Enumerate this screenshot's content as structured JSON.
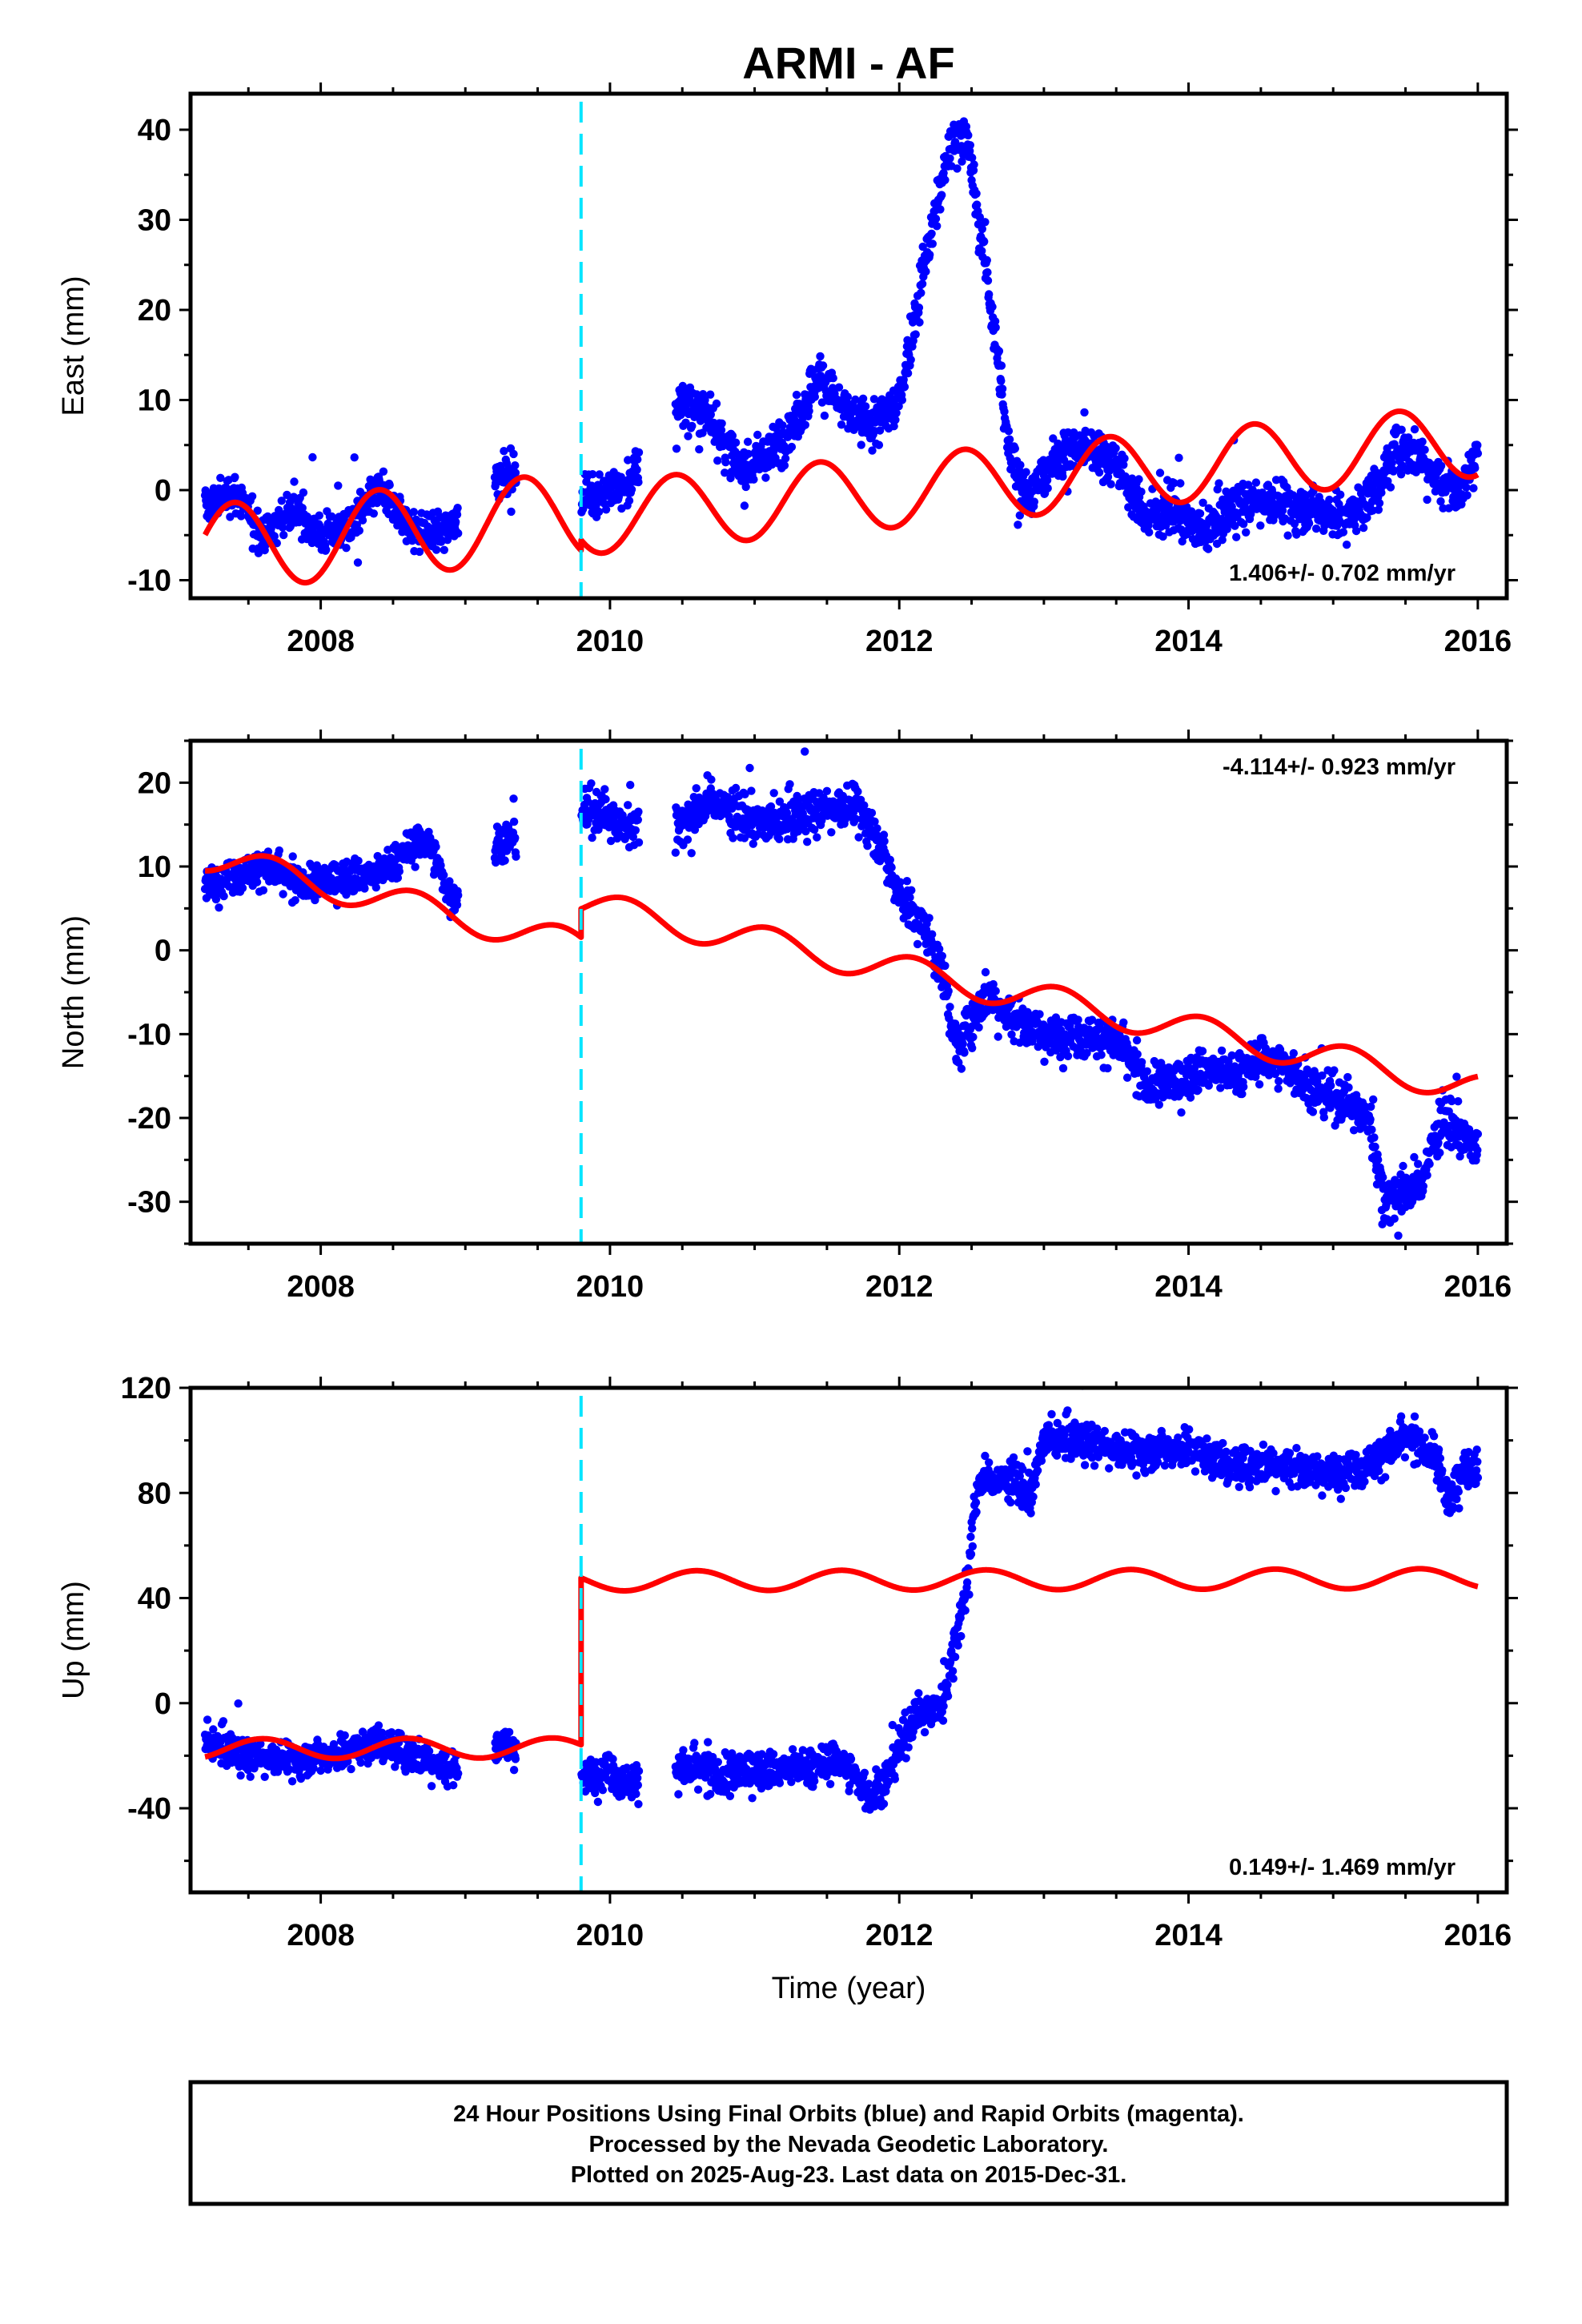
{
  "title": "ARMI - AF",
  "x_axis_label": "Time (year)",
  "colors": {
    "observations": "#0000ff",
    "model": "#ff0000",
    "event_line": "#00e5ff",
    "frame": "#000000"
  },
  "footer": {
    "lines": [
      "24 Hour Positions Using Final Orbits (blue) and Rapid Orbits (magenta).",
      "Processed by the Nevada Geodetic Laboratory.",
      "Plotted on 2025-Aug-23. Last data on 2015-Dec-31."
    ]
  },
  "chart_data": [
    {
      "type": "scatter",
      "name": "east",
      "ylabel": "East (mm)",
      "xlabel": "",
      "xlim": [
        2007.1,
        2016.2
      ],
      "ylim": [
        -12,
        44
      ],
      "xticks": [
        2008,
        2010,
        2012,
        2014,
        2016
      ],
      "yticks": [
        -10,
        0,
        10,
        20,
        30,
        40
      ],
      "rate_label": "1.406+/- 0.702 mm/yr",
      "rate_position": "bottom-right",
      "event_line_x": 2009.8,
      "observations_trend": {
        "x": [
          2007.2,
          2007.4,
          2007.6,
          2007.8,
          2008.0,
          2008.2,
          2008.4,
          2008.6,
          2008.75,
          2008.9,
          2009.25,
          2009.8,
          2009.9,
          2010.1,
          2010.5,
          2010.7,
          2010.9,
          2011.1,
          2011.3,
          2011.45,
          2011.6,
          2011.8,
          2012.0,
          2012.2,
          2012.35,
          2012.45,
          2012.6,
          2012.75,
          2012.9,
          2013.1,
          2013.3,
          2013.5,
          2013.7,
          2013.9,
          2014.1,
          2014.3,
          2014.5,
          2014.7,
          2014.9,
          2015.1,
          2015.3,
          2015.45,
          2015.6,
          2015.75,
          2015.9,
          2016.0
        ],
        "y": [
          -2,
          0,
          -5,
          -2,
          -5,
          -4,
          0,
          -4,
          -5,
          -4,
          2,
          -1,
          0,
          0,
          10,
          8,
          2,
          4,
          8,
          13,
          9,
          7,
          10,
          27,
          38,
          40,
          25,
          5,
          -1,
          4,
          5,
          3,
          -3,
          -2,
          -5,
          -2,
          -1,
          -2,
          -2,
          -3,
          0,
          5,
          4,
          1,
          0,
          5
        ],
        "spread": [
          1.5,
          1.5,
          1.5,
          1.5,
          1.5,
          1.5,
          1.5,
          1.5,
          1.5,
          1.5,
          1.5,
          1.8,
          1.8,
          1.8,
          1.8,
          1.8,
          1.8,
          1.8,
          1.8,
          1.8,
          1.8,
          1.8,
          1.8,
          2.0,
          2.0,
          2.0,
          2.0,
          2.0,
          1.8,
          1.8,
          1.8,
          1.8,
          1.8,
          1.8,
          1.8,
          1.8,
          1.8,
          1.8,
          1.8,
          1.8,
          1.8,
          1.8,
          1.8,
          1.8,
          1.8,
          1.8
        ],
        "data_gaps": [
          [
            2008.95,
            2009.2
          ],
          [
            2009.35,
            2009.8
          ],
          [
            2010.2,
            2010.45
          ]
        ],
        "approx_points_per_year": 300
      },
      "model": {
        "x_start": 2007.2,
        "x_end": 2016.0,
        "offset_at": 2009.8,
        "segments": [
          {
            "from": 2007.2,
            "to": 2009.8,
            "intercept_at_2009_8": -2.8,
            "rate": 1.406,
            "annual_amplitude": 4.8,
            "annual_peak": 2009.4
          },
          {
            "from": 2009.8,
            "to": 2016.0,
            "intercept_at_2009_8": -3.2,
            "rate": 1.406,
            "annual_amplitude": 4.0,
            "annual_peak": 2010.45
          }
        ]
      }
    },
    {
      "type": "scatter",
      "name": "north",
      "ylabel": "North (mm)",
      "xlabel": "",
      "xlim": [
        2007.1,
        2016.2
      ],
      "ylim": [
        -35,
        25
      ],
      "xticks": [
        2008,
        2010,
        2012,
        2014,
        2016
      ],
      "yticks": [
        -30,
        -20,
        -10,
        0,
        10,
        20
      ],
      "rate_label": "-4.114+/- 0.923 mm/yr",
      "rate_position": "top-right",
      "event_line_x": 2009.8,
      "observations_trend": {
        "x": [
          2007.2,
          2007.4,
          2007.6,
          2007.8,
          2008.0,
          2008.2,
          2008.4,
          2008.6,
          2008.75,
          2008.9,
          2009.25,
          2009.8,
          2009.9,
          2010.1,
          2010.5,
          2010.7,
          2010.9,
          2011.1,
          2011.3,
          2011.5,
          2011.7,
          2011.8,
          2012.0,
          2012.2,
          2012.3,
          2012.4,
          2012.6,
          2012.8,
          2013.0,
          2013.3,
          2013.5,
          2013.7,
          2013.9,
          2014.1,
          2014.3,
          2014.5,
          2014.7,
          2014.9,
          2015.1,
          2015.25,
          2015.35,
          2015.6,
          2015.75,
          2015.9,
          2016.0
        ],
        "y": [
          8,
          9,
          10,
          8,
          8,
          9,
          9,
          12,
          13,
          6,
          13,
          16,
          17,
          15,
          15,
          18,
          16,
          15,
          16,
          17,
          17,
          15,
          7,
          2,
          -3,
          -12,
          -5,
          -8,
          -10,
          -10,
          -11,
          -16,
          -16,
          -14,
          -15,
          -13,
          -14,
          -17,
          -18,
          -20,
          -30,
          -28,
          -20,
          -22,
          -24
        ],
        "spread": [
          1.5,
          1.5,
          1.5,
          1.5,
          1.5,
          1.5,
          1.5,
          1.5,
          1.5,
          1.5,
          1.5,
          1.8,
          1.8,
          1.8,
          1.8,
          1.8,
          1.8,
          1.8,
          1.8,
          1.8,
          1.8,
          1.8,
          1.8,
          1.8,
          1.8,
          2.0,
          1.8,
          1.8,
          1.8,
          1.8,
          1.8,
          1.8,
          1.8,
          1.8,
          1.8,
          1.8,
          1.8,
          1.8,
          1.8,
          1.8,
          2.0,
          2.0,
          2.0,
          1.8,
          1.8
        ],
        "data_gaps": [
          [
            2008.95,
            2009.2
          ],
          [
            2009.35,
            2009.8
          ],
          [
            2010.2,
            2010.45
          ]
        ],
        "approx_points_per_year": 300
      },
      "model": {
        "x_start": 2007.2,
        "x_end": 2016.0,
        "offset_at": 2009.8,
        "segments": [
          {
            "from": 2007.2,
            "to": 2009.8,
            "intercept_at_2009_8": 0.5,
            "rate": -4.114,
            "annual_amplitude": 1.8,
            "annual_peak": 2009.65
          },
          {
            "from": 2009.8,
            "to": 2016.0,
            "intercept_at_2009_8": 5.5,
            "rate": -3.55,
            "annual_amplitude": 1.8,
            "annual_peak": 2010.1
          }
        ]
      }
    },
    {
      "type": "scatter",
      "name": "up",
      "ylabel": "Up (mm)",
      "xlabel": "Time (year)",
      "xlim": [
        2007.1,
        2016.2
      ],
      "ylim": [
        -72,
        120
      ],
      "xticks": [
        2008,
        2010,
        2012,
        2014,
        2016
      ],
      "yticks": [
        -40,
        0,
        40,
        80,
        120
      ],
      "rate_label": "0.149+/- 1.469 mm/yr",
      "rate_position": "bottom-right",
      "event_line_x": 2009.8,
      "observations_trend": {
        "x": [
          2007.2,
          2007.5,
          2007.8,
          2008.0,
          2008.4,
          2008.8,
          2008.9,
          2009.25,
          2009.8,
          2010.0,
          2010.1,
          2010.5,
          2010.8,
          2011.0,
          2011.3,
          2011.6,
          2011.8,
          2011.9,
          2012.1,
          2012.3,
          2012.45,
          2012.55,
          2012.8,
          2012.9,
          2013.0,
          2013.3,
          2013.6,
          2014.0,
          2014.3,
          2014.6,
          2014.9,
          2015.2,
          2015.5,
          2015.7,
          2015.8,
          2015.9,
          2016.0
        ],
        "y": [
          -15,
          -20,
          -22,
          -20,
          -15,
          -22,
          -25,
          -15,
          -28,
          -25,
          -30,
          -25,
          -28,
          -25,
          -25,
          -22,
          -35,
          -30,
          -5,
          0,
          40,
          85,
          85,
          78,
          100,
          100,
          95,
          98,
          90,
          92,
          88,
          90,
          100,
          95,
          75,
          90,
          90
        ],
        "spread": [
          4.5,
          4.5,
          4.5,
          4.5,
          4.5,
          4.5,
          4.5,
          4.5,
          5,
          5,
          5,
          5,
          6,
          5,
          5,
          5,
          5,
          5,
          5,
          5,
          6,
          5,
          5,
          5,
          5,
          5,
          5,
          5,
          5,
          5,
          5,
          5,
          5,
          5,
          6,
          5,
          5
        ],
        "data_gaps": [
          [
            2008.95,
            2009.2
          ],
          [
            2009.35,
            2009.8
          ],
          [
            2010.2,
            2010.45
          ]
        ],
        "approx_points_per_year": 300
      },
      "model": {
        "x_start": 2007.2,
        "x_end": 2016.0,
        "offset_at": 2009.8,
        "segments": [
          {
            "from": 2007.2,
            "to": 2009.8,
            "intercept_at_2009_8": -17,
            "rate": 0.149,
            "annual_amplitude": 3.8,
            "annual_peak": 2008.6
          },
          {
            "from": 2009.8,
            "to": 2016.0,
            "intercept_at_2009_8": 46.5,
            "rate": 0.149,
            "annual_amplitude": 3.8,
            "annual_peak": 2010.6
          }
        ]
      }
    }
  ]
}
